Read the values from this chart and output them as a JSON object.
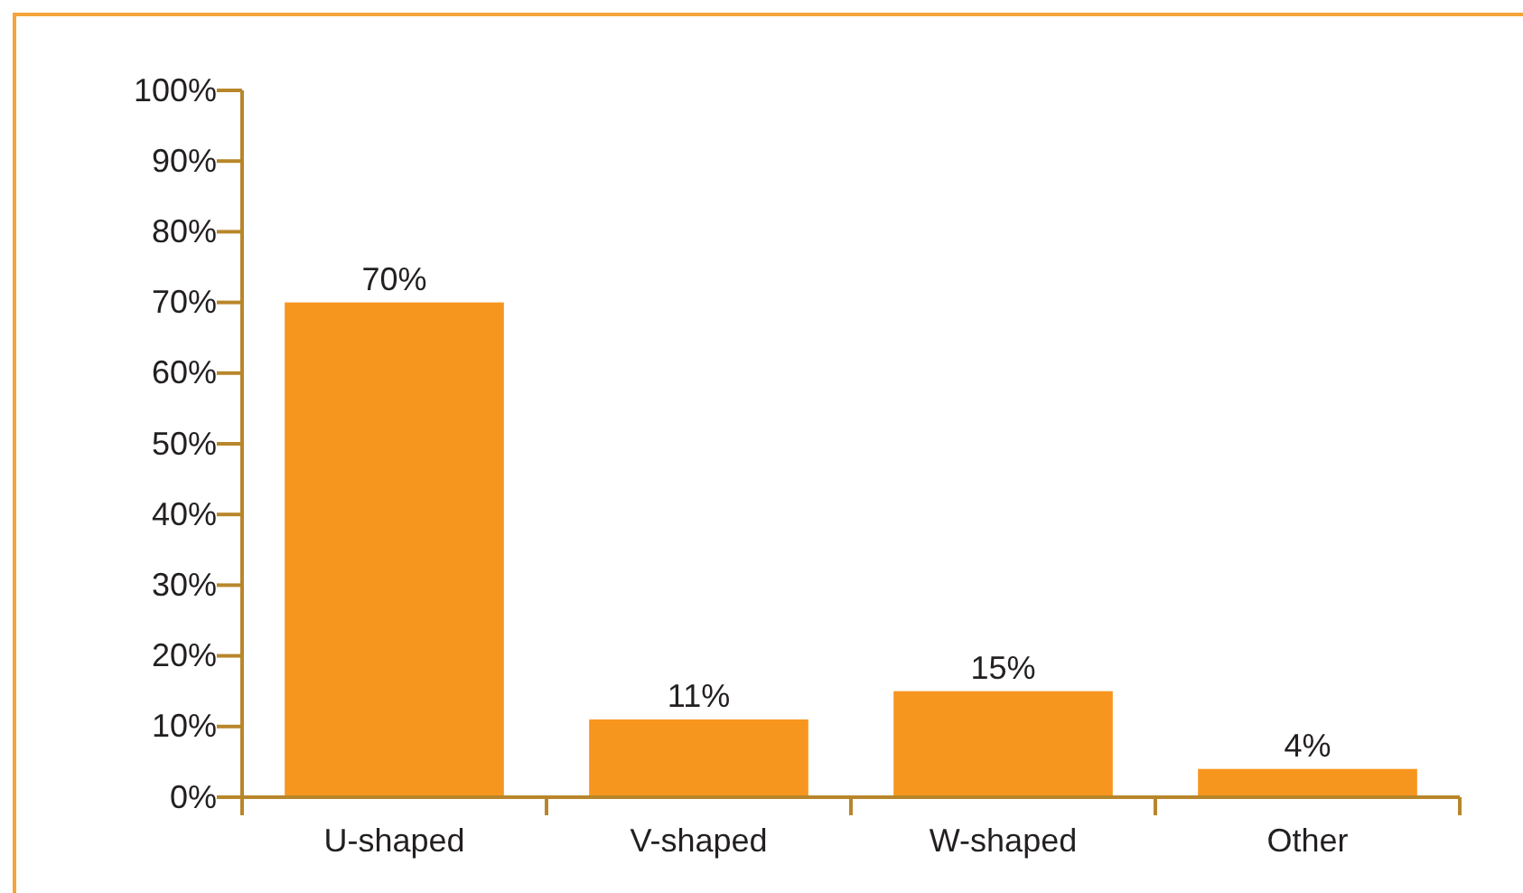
{
  "chart_data": {
    "type": "bar",
    "categories": [
      "U-shaped",
      "V-shaped",
      "W-shaped",
      "Other"
    ],
    "values": [
      70,
      11,
      15,
      4
    ],
    "color": "#f7961f",
    "value_labels": [
      "70%",
      "11%",
      "15%",
      "4%"
    ],
    "ylim": [
      0,
      100
    ],
    "yticks": [
      {
        "value": 0,
        "label": "0%"
      },
      {
        "value": 10,
        "label": "10%"
      },
      {
        "value": 20,
        "label": "20%"
      },
      {
        "value": 30,
        "label": "30%"
      },
      {
        "value": 40,
        "label": "40%"
      },
      {
        "value": 50,
        "label": "50%"
      },
      {
        "value": 60,
        "label": "60%"
      },
      {
        "value": 70,
        "label": "70%"
      },
      {
        "value": 80,
        "label": "80%"
      },
      {
        "value": 90,
        "label": "90%"
      },
      {
        "value": 100,
        "label": "100%"
      }
    ],
    "grid": false
  }
}
